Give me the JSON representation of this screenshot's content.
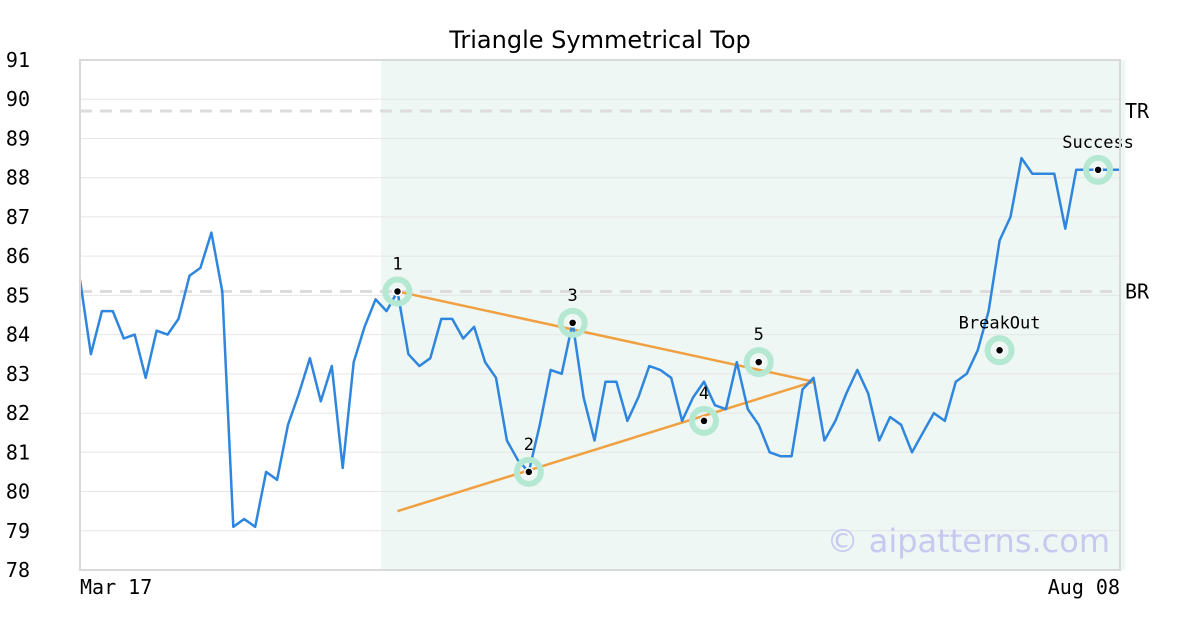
{
  "chart_data": {
    "type": "line",
    "title": "Triangle Symmetrical Top",
    "ylim": [
      78,
      91
    ],
    "y_ticks": [
      "78",
      "79",
      "80",
      "81",
      "82",
      "83",
      "84",
      "85",
      "86",
      "87",
      "88",
      "89",
      "90",
      "91"
    ],
    "x_tick_labels": [
      "Mar 17",
      "Aug 08"
    ],
    "grid": true,
    "x": [
      0,
      1,
      2,
      3,
      4,
      5,
      6,
      7,
      8,
      9,
      10,
      11,
      12,
      13,
      14,
      15,
      16,
      17,
      18,
      19,
      20,
      21,
      22,
      23,
      24,
      25,
      26,
      27,
      28,
      29,
      30,
      31,
      32,
      33,
      34,
      35,
      36,
      37,
      38,
      39,
      40,
      41,
      42,
      43,
      44,
      45,
      46,
      47,
      48,
      49,
      50,
      51,
      52,
      53,
      54,
      55,
      56,
      57,
      58,
      59,
      60,
      61,
      62,
      63,
      64,
      65,
      66,
      67,
      68,
      69,
      70,
      71,
      72,
      73,
      74,
      75,
      76,
      77,
      78,
      79,
      80,
      81,
      82,
      83,
      84,
      85,
      86,
      87,
      88,
      89,
      90,
      91,
      92,
      93,
      94,
      95
    ],
    "series": [
      {
        "color": "#2e86de",
        "values": [
          85.4,
          83.5,
          84.6,
          84.6,
          83.9,
          84.0,
          82.9,
          84.1,
          84.0,
          84.4,
          85.5,
          85.7,
          86.6,
          85.1,
          79.1,
          79.3,
          79.1,
          80.5,
          80.3,
          81.7,
          82.5,
          83.4,
          82.3,
          83.2,
          80.6,
          83.3,
          84.2,
          84.9,
          84.6,
          85.1,
          83.5,
          83.2,
          83.4,
          84.4,
          84.4,
          83.9,
          84.2,
          83.3,
          82.9,
          81.3,
          80.8,
          80.5,
          81.7,
          83.1,
          83.0,
          84.3,
          82.4,
          81.3,
          82.8,
          82.8,
          81.8,
          82.4,
          83.2,
          83.1,
          82.9,
          81.8,
          82.4,
          82.8,
          82.2,
          82.1,
          83.3,
          82.1,
          81.7,
          81.0,
          80.9,
          80.9,
          82.6,
          82.9,
          81.3,
          81.8,
          82.5,
          83.1,
          82.5,
          81.3,
          81.9,
          81.7,
          81.0,
          81.5,
          82.0,
          81.8,
          82.8,
          83.0,
          83.6,
          84.6,
          86.4,
          87.0,
          88.5,
          88.1,
          88.1,
          88.1,
          86.7,
          88.2,
          88.2,
          88.2,
          88.2,
          88.2
        ]
      }
    ],
    "pattern_region": {
      "x_start": 27.5,
      "x_end": 95.5
    },
    "reference_lines": [
      {
        "label": "TR",
        "y": 89.7
      },
      {
        "label": "BR",
        "y": 85.1
      }
    ],
    "trendlines": [
      {
        "color": "#f0a040",
        "from": {
          "x": 29,
          "y": 85.1
        },
        "to": {
          "x": 67,
          "y": 82.8
        }
      },
      {
        "color": "#f0a040",
        "from": {
          "x": 29,
          "y": 79.5
        },
        "to": {
          "x": 67,
          "y": 82.8
        }
      }
    ],
    "annotations": [
      {
        "label": "1",
        "x": 29,
        "y": 85.1
      },
      {
        "label": "2",
        "x": 41,
        "y": 80.5
      },
      {
        "label": "3",
        "x": 45,
        "y": 84.3
      },
      {
        "label": "4",
        "x": 57,
        "y": 81.8
      },
      {
        "label": "5",
        "x": 62,
        "y": 83.3
      },
      {
        "label": "BreakOut",
        "x": 84,
        "y": 83.6
      },
      {
        "label": "Success",
        "x": 93,
        "y": 88.2
      }
    ],
    "watermark": "© aipatterns.com"
  }
}
